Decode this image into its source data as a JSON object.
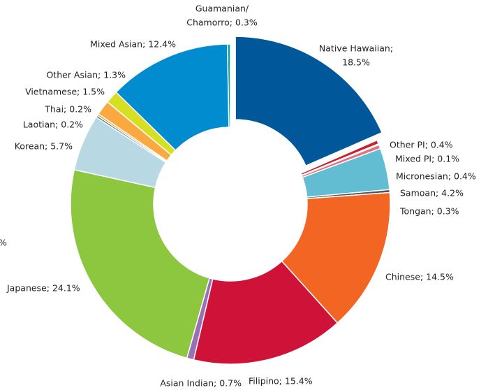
{
  "chart_data": {
    "type": "donut",
    "labels": [
      [
        "Native Hawaiian;",
        "18.5%"
      ],
      "Other PI; 0.4%",
      "Mixed PI; 0.1%",
      "Micronesian; 0.4%",
      "Samoan; 4.2%",
      "Tongan; 0.3%",
      "Chinese; 14.5%",
      "Filipino; 15.4%",
      "Asian Indian; 0.7%",
      "Japanese; 24.1%",
      "Korean; 5.7%",
      "Laotian; 0.2%",
      "Thai; 0.2%",
      "Vietnamese; 1.5%",
      "Other Asian; 1.3%",
      "Mixed Asian; 12.4%",
      [
        "Guamanian/",
        "Chamorro; 0.3%"
      ]
    ],
    "values": [
      18.5,
      0.4,
      0.1,
      0.4,
      4.2,
      0.3,
      14.5,
      15.4,
      0.7,
      24.1,
      5.7,
      0.2,
      0.2,
      1.5,
      1.3,
      12.4,
      0.3
    ],
    "colors": [
      "#00589a",
      "#c8202f",
      "#f08c8c",
      "#e5737d",
      "#62bcd2",
      "#555555",
      "#f26522",
      "#cf1237",
      "#9b6fb5",
      "#8dc63f",
      "#b8d8e4",
      "#3c7a8a",
      "#f7941d",
      "#f9a93f",
      "#d7df23",
      "#008ccf",
      "#00a99d"
    ],
    "exploded": [
      0
    ],
    "annotations": [
      "%"
    ]
  }
}
